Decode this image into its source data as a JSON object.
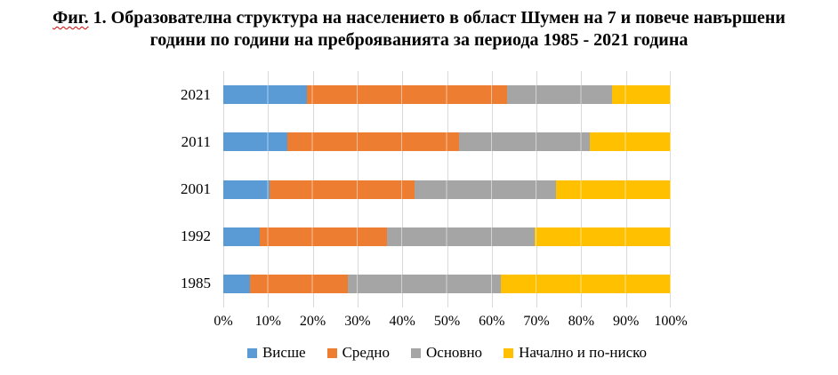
{
  "title": {
    "marked_word": "Фиг.",
    "line1_rest": " 1. Образователна структура на населението в област Шумен на 7 и повече навършени",
    "line2": "години по години на преброяванията за периода 1985 - 2021 година"
  },
  "chart_data": {
    "type": "bar",
    "stacked": true,
    "orientation": "horizontal",
    "categories": [
      "2021",
      "2011",
      "2001",
      "1992",
      "1985"
    ],
    "series": [
      {
        "name": "Висше",
        "color": "#5B9BD5",
        "textured": false,
        "values": [
          18.7,
          14.3,
          10.4,
          8.1,
          6.0
        ]
      },
      {
        "name": "Средно",
        "color": "#ED7D31",
        "textured": false,
        "values": [
          44.7,
          38.4,
          32.3,
          28.4,
          21.9
        ]
      },
      {
        "name": "Основно",
        "color": "#A5A5A5",
        "textured": true,
        "values": [
          23.5,
          29.2,
          31.6,
          33.0,
          34.1
        ]
      },
      {
        "name": "Начално и по-ниско",
        "color": "#FFC000",
        "textured": false,
        "values": [
          13.1,
          18.1,
          25.7,
          30.5,
          38.0
        ]
      }
    ],
    "x_ticks": [
      "0%",
      "10%",
      "20%",
      "30%",
      "40%",
      "50%",
      "60%",
      "70%",
      "80%",
      "90%",
      "100%"
    ],
    "xlim": [
      0,
      100
    ],
    "grid": "vertical",
    "gridline_color": "#D9D9D9",
    "legend_position": "bottom"
  }
}
